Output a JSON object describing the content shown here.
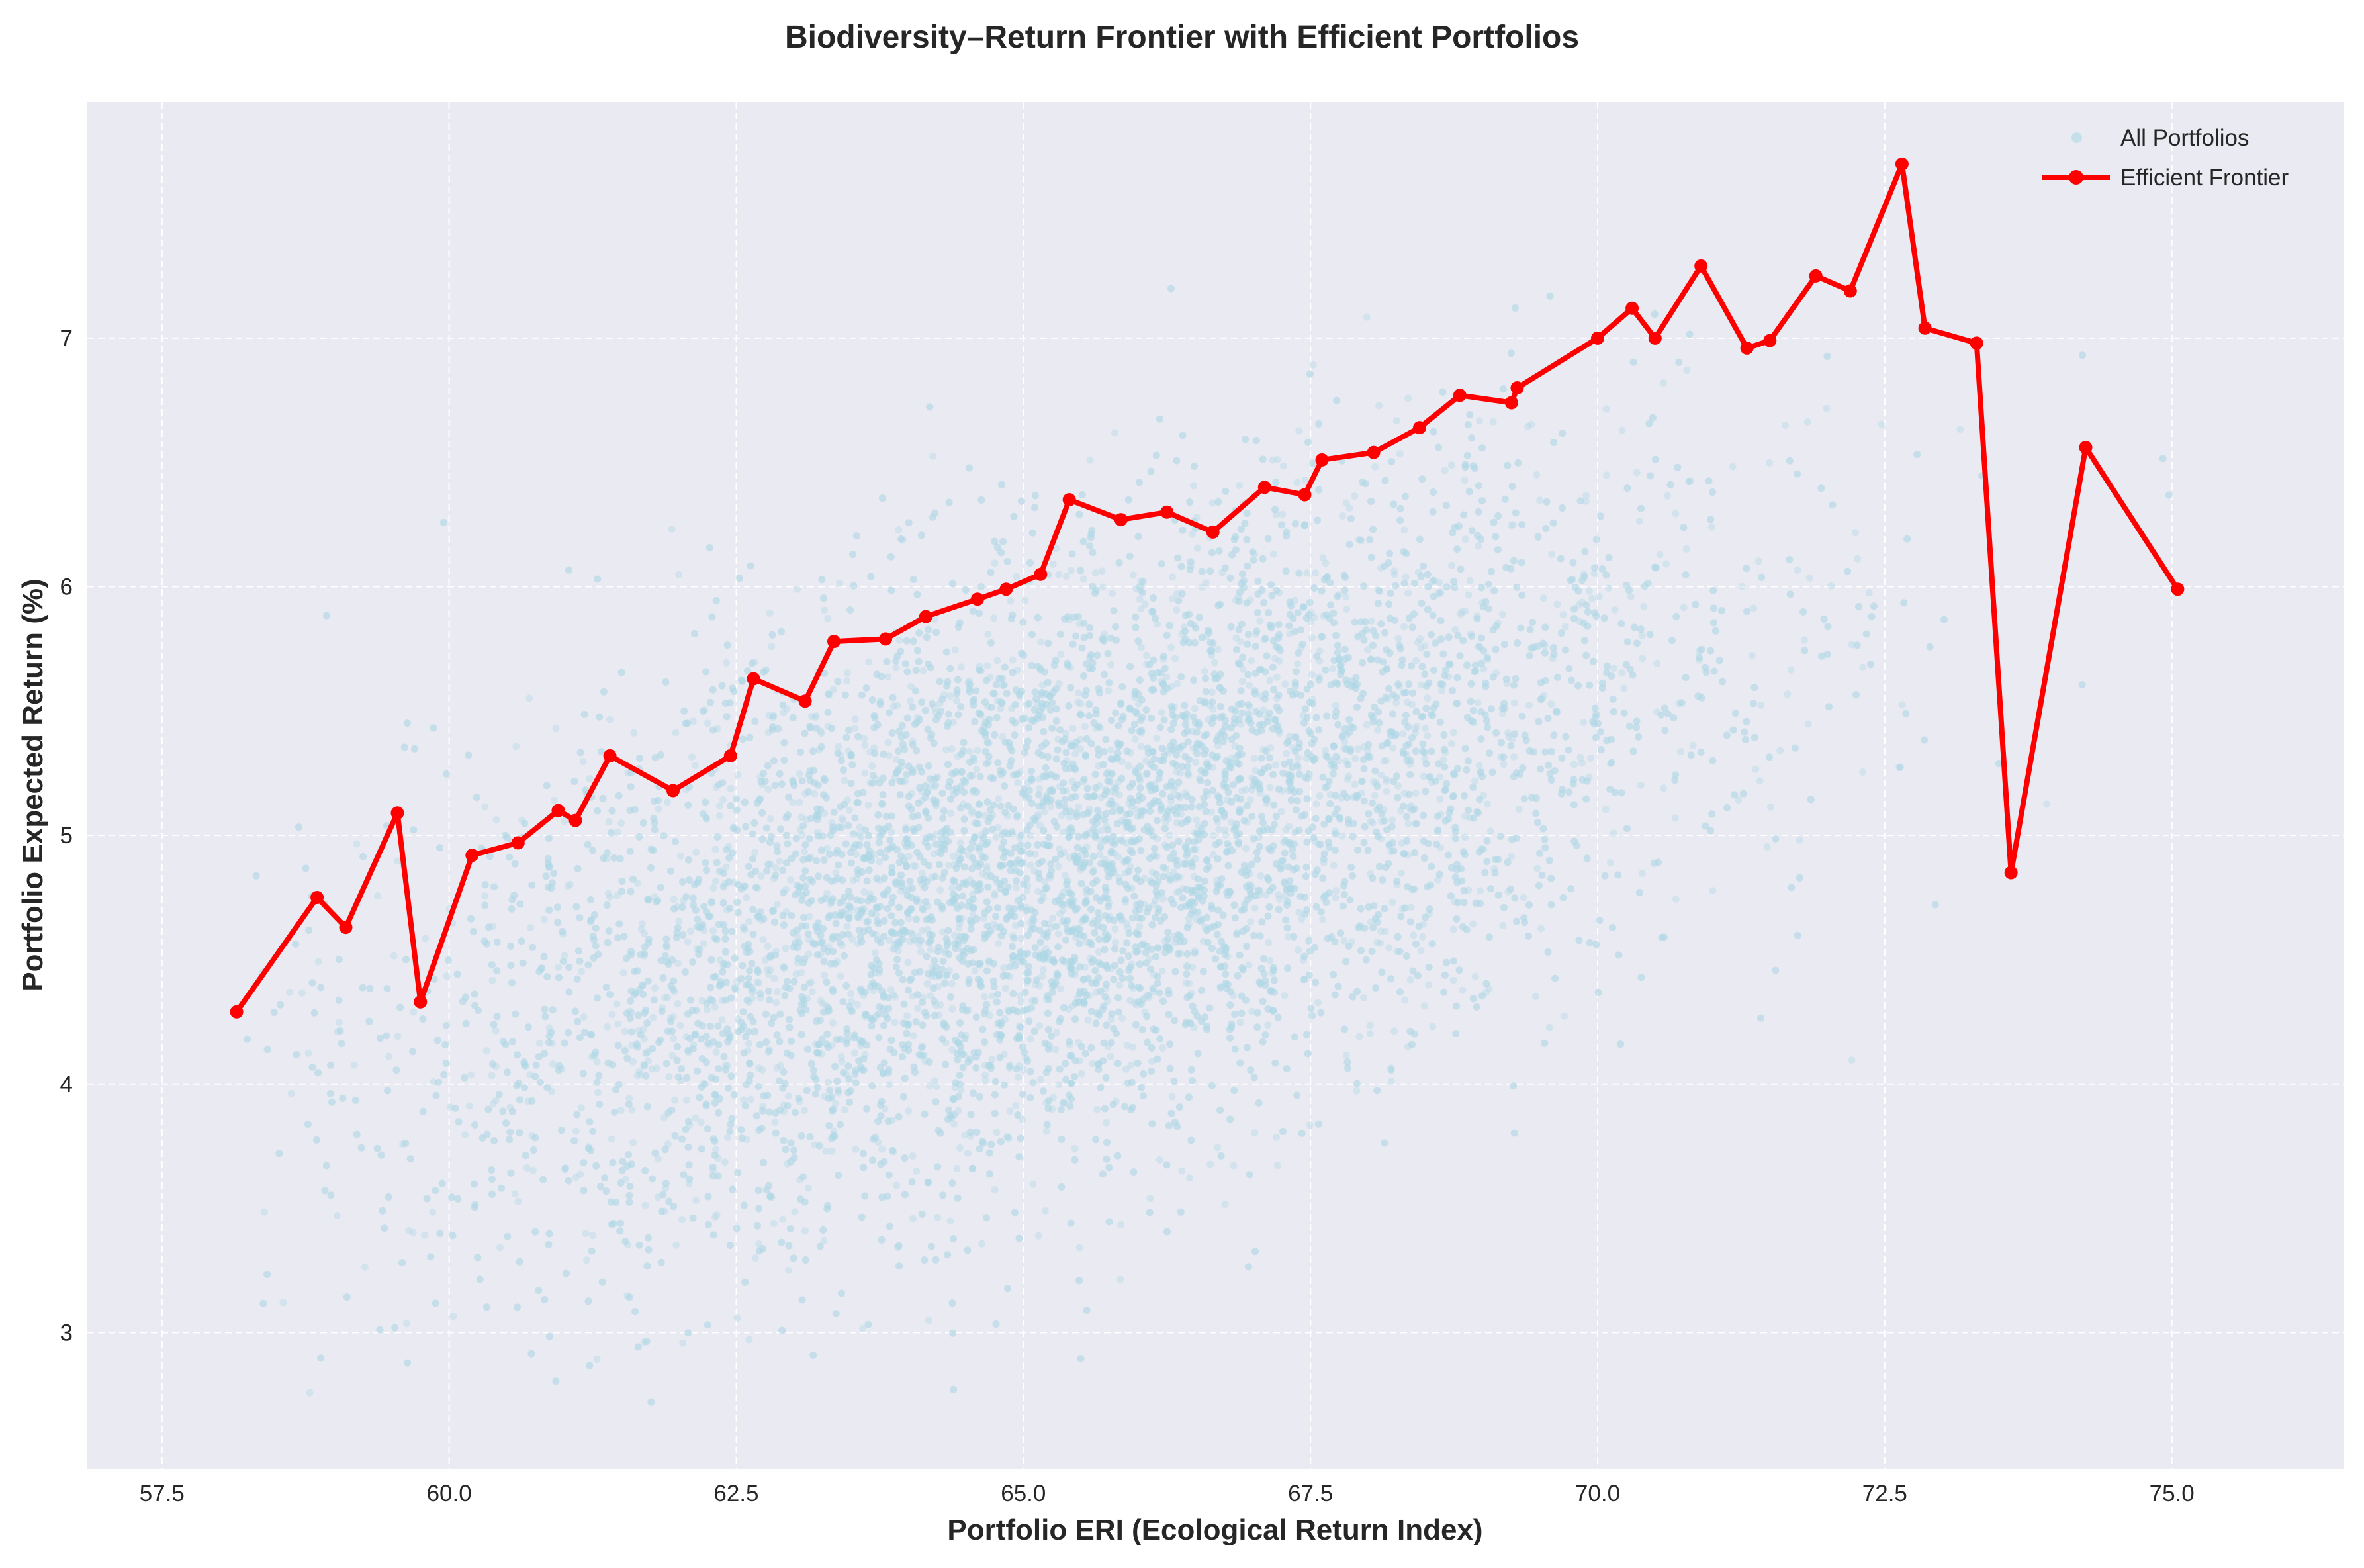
{
  "chart_data": {
    "type": "scatter",
    "title": "Biodiversity–Return Frontier with Efficient Portfolios",
    "xlabel": "Portfolio ERI (Ecological Return Index)",
    "ylabel": "Portfolio Expected Return (%)",
    "xlim": [
      56.85,
      76.5
    ],
    "ylim": [
      2.45,
      7.95
    ],
    "xticks": [
      "57.5",
      "60.0",
      "62.5",
      "65.0",
      "67.5",
      "70.0",
      "72.5",
      "75.0"
    ],
    "yticks": [
      "3",
      "4",
      "5",
      "6",
      "7"
    ],
    "grid": true,
    "legend": {
      "position": "top-right",
      "entries": [
        "All Portfolios",
        "Efficient Frontier"
      ]
    },
    "colors": {
      "scatter": "#add8e6",
      "frontier": "#ff0000",
      "plot_background": "#eaeaf2",
      "grid": "#ffffff"
    },
    "scatter_series": {
      "name": "All Portfolios",
      "approx_count": 10000,
      "x_mean": 65.3,
      "x_std": 2.7,
      "y_mean": 4.9,
      "y_std": 0.72,
      "correlation": 0.55,
      "x_range": [
        58.2,
        75.8
      ],
      "y_range": [
        2.7,
        7.3
      ]
    },
    "series": [
      {
        "name": "Efficient Frontier",
        "x": [
          58.15,
          58.85,
          59.1,
          59.55,
          59.75,
          60.2,
          60.6,
          60.95,
          61.1,
          61.4,
          61.95,
          62.45,
          62.65,
          63.1,
          63.35,
          63.8,
          64.15,
          64.6,
          64.85,
          65.15,
          65.4,
          65.85,
          66.25,
          66.65,
          67.1,
          67.45,
          67.6,
          68.05,
          68.45,
          68.8,
          69.25,
          69.3,
          70.0,
          70.3,
          70.5,
          70.9,
          71.3,
          71.5,
          71.9,
          72.2,
          72.65,
          72.85,
          73.3,
          73.6,
          74.25,
          75.05
        ],
        "y": [
          4.29,
          4.75,
          4.63,
          5.09,
          4.33,
          4.92,
          4.97,
          5.1,
          5.06,
          5.32,
          5.18,
          5.32,
          5.63,
          5.54,
          5.78,
          5.79,
          5.88,
          5.95,
          5.99,
          6.05,
          6.35,
          6.27,
          6.3,
          6.22,
          6.4,
          6.37,
          6.51,
          6.54,
          6.64,
          6.77,
          6.74,
          6.8,
          7.0,
          7.12,
          7.0,
          7.29,
          6.96,
          6.99,
          7.25,
          7.19,
          7.7,
          7.04,
          6.98,
          4.85,
          6.56,
          5.99
        ]
      }
    ]
  }
}
